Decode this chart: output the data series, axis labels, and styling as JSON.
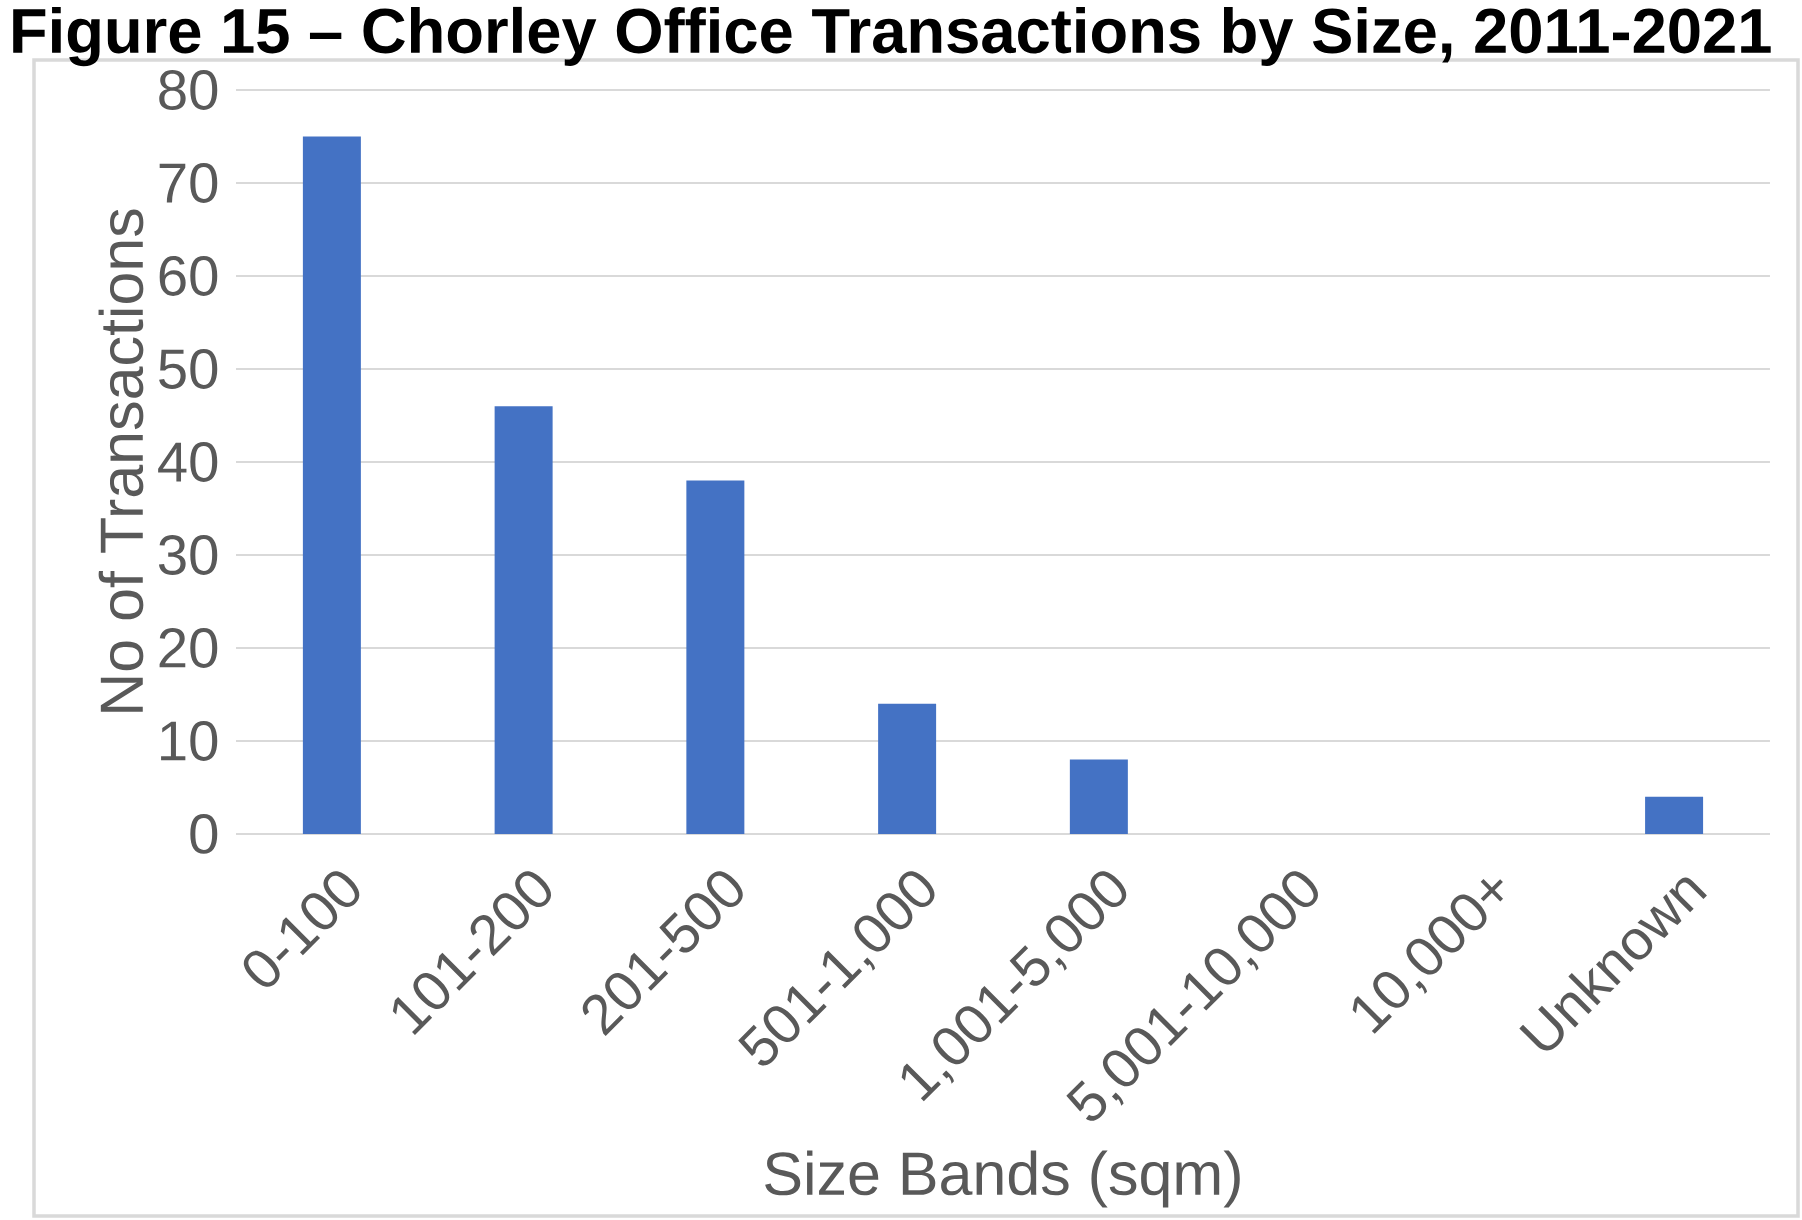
{
  "chart_data": {
    "type": "bar",
    "title": "Figure 15 – Chorley Office Transactions by Size, 2011-2021",
    "xlabel": "Size Bands (sqm)",
    "ylabel": "No of Transactions",
    "categories": [
      "0-100",
      "101-200",
      "201-500",
      "501-1,000",
      "1,001-5,000",
      "5,001-10,000",
      "10,000+",
      "Unknown"
    ],
    "values": [
      75,
      46,
      38,
      14,
      8,
      0,
      0,
      4
    ],
    "color": "#4472c4",
    "ylim": [
      0,
      80
    ],
    "yticks": [
      0,
      10,
      20,
      30,
      40,
      50,
      60,
      70,
      80
    ],
    "grid": "y"
  }
}
